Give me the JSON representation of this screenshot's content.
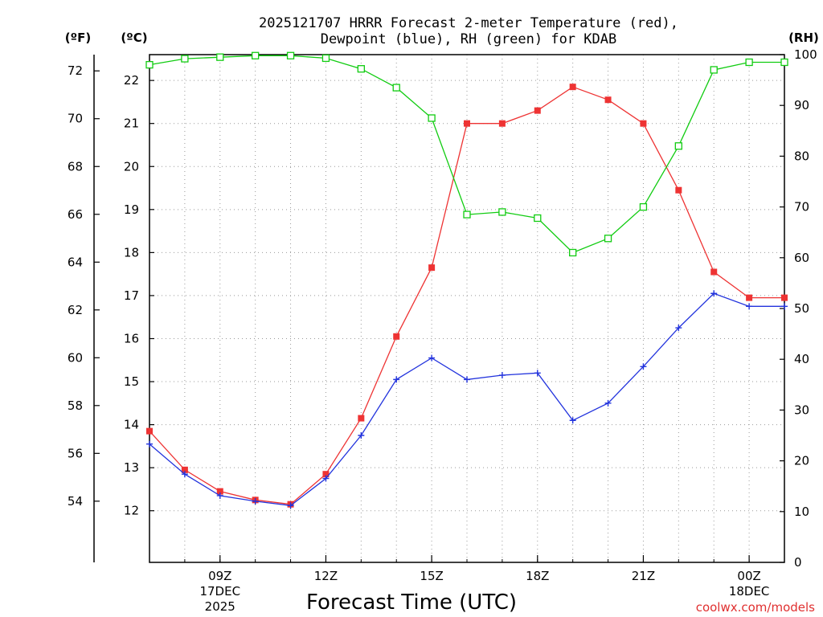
{
  "chart_data": {
    "type": "line",
    "title_line1": "2025121707 HRRR Forecast 2-meter Temperature (red),",
    "title_line2": "Dewpoint (blue), RH (green) for KDAB",
    "unit_f": "(ºF)",
    "unit_c": "(ºC)",
    "unit_rh": "(RH)",
    "xlabel": "Forecast Time (UTC)",
    "credit": "coolwx.com/models",
    "colors": {
      "temperature": "#ee3333",
      "dewpoint": "#2233dd",
      "rh": "#11cc11",
      "grid": "#999999"
    },
    "x_hours": [
      7,
      8,
      9,
      10,
      11,
      12,
      13,
      14,
      15,
      16,
      17,
      18,
      19,
      20,
      21,
      22,
      23,
      24,
      25
    ],
    "x_range": [
      7,
      25
    ],
    "x_ticks": [
      {
        "hour": 9,
        "label": "09Z",
        "date": "17DEC",
        "year": "2025"
      },
      {
        "hour": 12,
        "label": "12Z"
      },
      {
        "hour": 15,
        "label": "15Z"
      },
      {
        "hour": 18,
        "label": "18Z"
      },
      {
        "hour": 21,
        "label": "21Z"
      },
      {
        "hour": 24,
        "label": "00Z",
        "date": "18DEC"
      }
    ],
    "c_range": [
      10.8,
      22.6
    ],
    "c_ticks": [
      12,
      13,
      14,
      15,
      16,
      17,
      18,
      19,
      20,
      21,
      22
    ],
    "f_ticks": [
      54,
      56,
      58,
      60,
      62,
      64,
      66,
      68,
      70,
      72
    ],
    "rh_range": [
      0,
      100
    ],
    "rh_ticks": [
      0,
      10,
      20,
      30,
      40,
      50,
      60,
      70,
      80,
      90,
      100
    ],
    "series": [
      {
        "name": "Temperature",
        "axis": "C",
        "marker": "filled-square",
        "values": [
          13.85,
          12.95,
          12.45,
          12.25,
          12.15,
          12.85,
          14.15,
          16.05,
          17.65,
          21.0,
          21.0,
          21.3,
          21.85,
          21.55,
          21.0,
          19.45,
          17.55,
          16.95,
          16.95
        ]
      },
      {
        "name": "Dewpoint",
        "axis": "C",
        "marker": "plus",
        "values": [
          13.55,
          12.85,
          12.35,
          12.22,
          12.12,
          12.75,
          13.75,
          15.05,
          15.55,
          15.05,
          15.15,
          15.2,
          14.1,
          14.5,
          15.35,
          16.25,
          17.05,
          16.75,
          16.75
        ]
      },
      {
        "name": "RH",
        "axis": "RH",
        "marker": "open-square",
        "values": [
          98.0,
          99.2,
          99.5,
          99.8,
          99.8,
          99.3,
          97.2,
          93.5,
          87.5,
          68.5,
          69.0,
          67.8,
          61.0,
          63.8,
          70.0,
          82.0,
          97.0,
          98.5,
          98.5
        ]
      }
    ]
  }
}
